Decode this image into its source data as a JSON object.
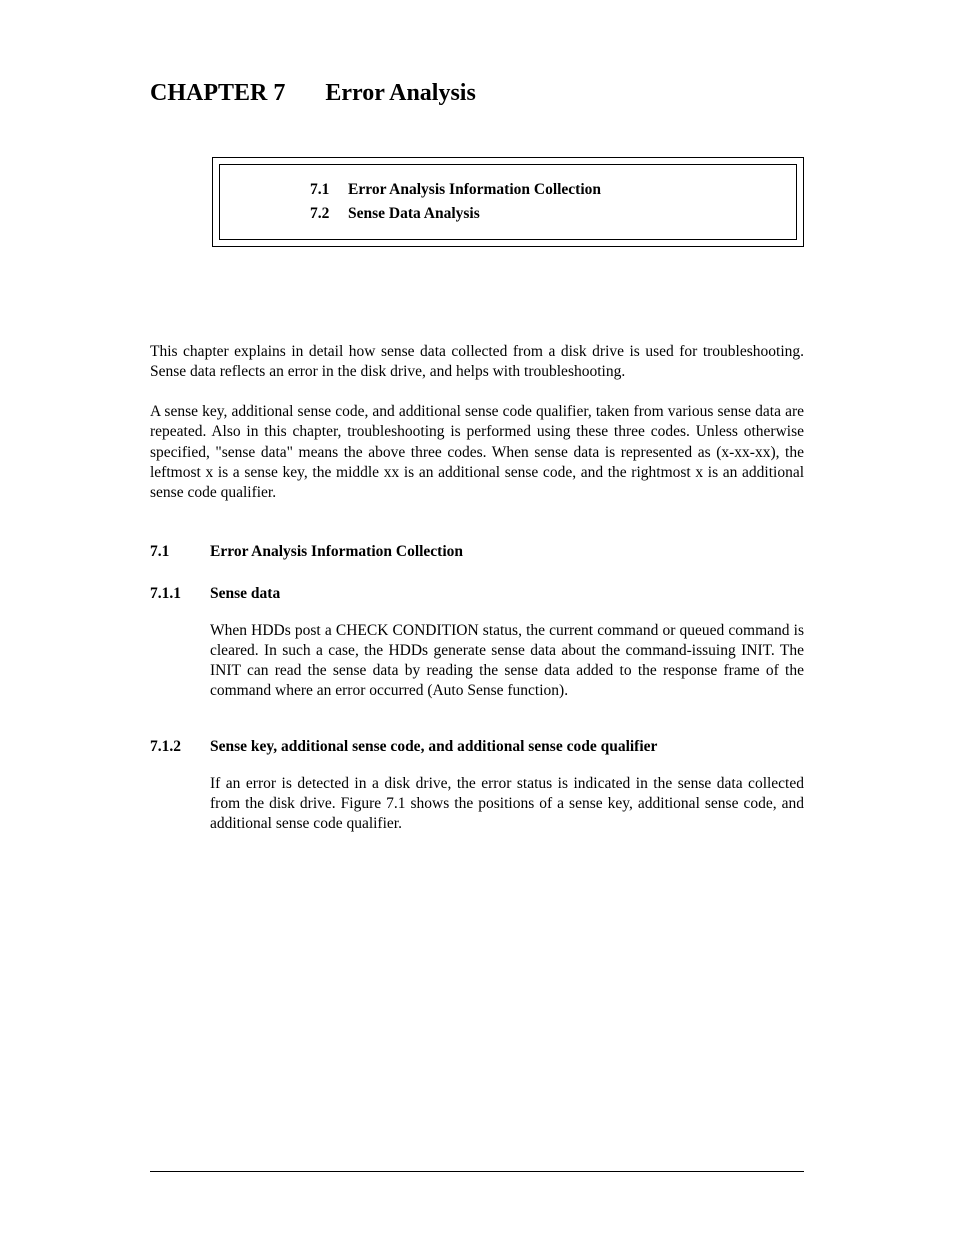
{
  "chapter": {
    "label": "CHAPTER 7",
    "title": "Error Analysis"
  },
  "toc": {
    "items": [
      {
        "num": "7.1",
        "title": "Error Analysis Information Collection"
      },
      {
        "num": "7.2",
        "title": "Sense Data Analysis"
      }
    ]
  },
  "intro": {
    "para1": "This chapter explains in detail how sense data collected from a disk drive is used for troubleshooting.  Sense data reflects an error in the disk drive, and helps with troubleshooting.",
    "para2": "A sense key, additional sense code, and additional sense code qualifier, taken from various sense data are repeated.  Also in this chapter, troubleshooting is performed using these three codes.  Unless otherwise specified, \"sense data\" means the above three codes.  When sense data is represented as (x-xx-xx), the leftmost x is a sense key, the middle xx is an additional sense code, and the rightmost x is an additional sense code qualifier."
  },
  "section71": {
    "num": "7.1",
    "title": "Error Analysis Information Collection"
  },
  "section711": {
    "num": "7.1.1",
    "title": "Sense data",
    "body": "When HDDs post a CHECK CONDITION status, the current command or queued command is cleared.  In such a case, the HDDs generate sense data about the command-issuing INIT.  The INIT can read the sense data by reading the sense data added to the response frame of the command where an error occurred (Auto Sense  function)."
  },
  "section712": {
    "num": "7.1.2",
    "title": "Sense key, additional sense code, and additional sense code qualifier",
    "body": "If an error is detected in a disk drive, the error status is indicated in the sense data collected from the disk drive.  Figure 7.1 shows the positions of a sense key, additional sense code, and additional sense code qualifier."
  }
}
